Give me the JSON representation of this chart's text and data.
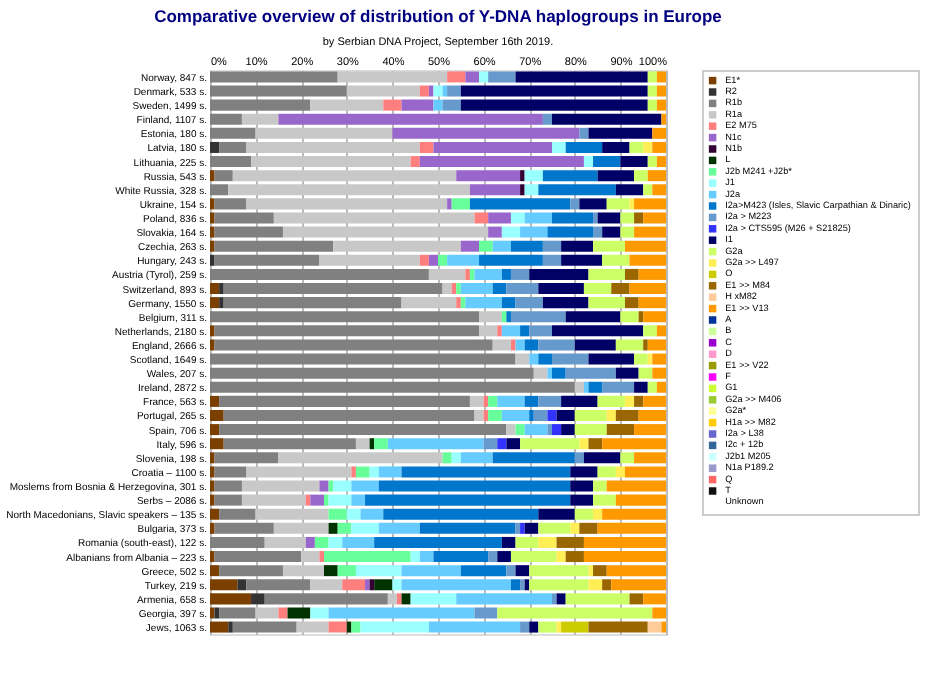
{
  "chart_data": {
    "type": "bar",
    "orientation": "horizontal",
    "stacked": true,
    "title": "Comparative overview of distribution of Y-DNA haplogroups in Europe",
    "subtitle": "by Serbian DNA Project, September 16th 2019.",
    "categories": [
      "Norway, 847 s.",
      "Denmark, 533 s.",
      "Sweden, 1499 s.",
      "Finland, 1107 s.",
      "Estonia, 180 s.",
      "Latvia, 180 s.",
      "Lithuania, 225 s.",
      "Russia, 543 s.",
      "White Russia, 328 s.",
      "Ukraine, 154 s.",
      "Poland, 836 s.",
      "Slovakia, 164 s.",
      "Czechia, 263 s.",
      "Hungary, 243 s.",
      "Austria (Tyrol), 259 s.",
      "Switzerland, 893 s.",
      "Germany, 1550 s.",
      "Belgium, 311 s.",
      "Netherlands, 2180 s.",
      "England, 2666 s.",
      "Scotland, 1649 s.",
      "Wales, 207 s.",
      "Ireland, 2872 s.",
      "France, 563 s.",
      "Portugal, 265 s.",
      "Spain, 706 s.",
      "Italy, 596 s.",
      "Slovenia, 198 s.",
      "Croatia – 1100 s.",
      "Moslems from Bosnia & Herzegovina, 301 s.",
      "Serbs – 2086 s.",
      "North Macedonians, Slavic speakers – 135 s.",
      "Bulgaria, 373 s.",
      "Romania (south-east), 122 s.",
      "Albanians from Albania – 223 s.",
      "Greece, 502 s.",
      "Turkey, 219 s.",
      "Armenia, 658 s.",
      "Georgia, 397 s.",
      "Jews, 1063 s."
    ],
    "xlim": [
      0,
      100
    ],
    "xticks": [
      {
        "value": 0,
        "label": "0%"
      },
      {
        "value": 10,
        "label": "10%"
      },
      {
        "value": 20,
        "label": "20%"
      },
      {
        "value": 30,
        "label": "30%"
      },
      {
        "value": 40,
        "label": "40%"
      },
      {
        "value": 50,
        "label": "50%"
      },
      {
        "value": 60,
        "label": "60%"
      },
      {
        "value": 70,
        "label": "70%"
      },
      {
        "value": 80,
        "label": "80%"
      },
      {
        "value": 90,
        "label": "90%"
      },
      {
        "value": 100,
        "label": "100%"
      }
    ],
    "grid": "x",
    "legend": "right",
    "series": [
      {
        "name": "E1*",
        "color": "#7b3f00",
        "values": [
          0,
          0,
          0,
          0,
          0,
          0,
          0,
          1,
          0,
          1,
          1,
          1,
          1,
          0,
          0,
          2,
          2,
          0,
          1,
          1,
          0,
          0,
          0,
          2,
          3,
          2,
          3,
          1,
          1,
          1,
          1,
          2,
          1,
          0,
          1,
          2,
          6,
          9,
          1,
          4
        ]
      },
      {
        "name": "R2",
        "color": "#333333",
        "values": [
          0,
          0,
          0,
          0,
          0,
          2,
          0,
          0,
          0,
          0,
          0,
          0,
          0,
          1,
          0,
          1,
          1,
          0,
          0,
          0,
          0,
          0,
          0,
          0,
          0,
          0,
          0,
          0,
          0,
          0,
          0,
          0,
          0,
          0,
          0,
          0,
          2,
          3,
          1,
          1
        ]
      },
      {
        "name": "R1b",
        "color": "#808080",
        "values": [
          28,
          30,
          22,
          7,
          10,
          6,
          9,
          4,
          4,
          7,
          13,
          15,
          26,
          23,
          48,
          48,
          39,
          59,
          58,
          61,
          67,
          71,
          80,
          55,
          55,
          63,
          29,
          14,
          7,
          6,
          6,
          8,
          13,
          12,
          19,
          14,
          14,
          27,
          8,
          14
        ]
      },
      {
        "name": "R1a",
        "color": "#c8c8c8",
        "values": [
          24,
          16,
          16,
          8,
          30,
          38,
          35,
          49,
          53,
          44,
          44,
          45,
          28,
          22,
          8,
          2,
          12,
          5,
          4,
          4,
          3,
          3,
          2,
          3,
          2,
          2,
          3,
          36,
          23,
          17,
          14,
          16,
          12,
          9,
          4,
          9,
          7,
          2,
          5,
          7
        ]
      },
      {
        "name": "E2 M75",
        "color": "#ff7f7f",
        "values": [
          4,
          2,
          4,
          0,
          0,
          3,
          2,
          0,
          0,
          0,
          3,
          0,
          0,
          2,
          1,
          1,
          1,
          0,
          1,
          1,
          0,
          0,
          0,
          1,
          1,
          0,
          0,
          0,
          1,
          0,
          1,
          0,
          0,
          0,
          1,
          0,
          5,
          1,
          2,
          4
        ]
      },
      {
        "name": "N1c",
        "color": "#9966cc",
        "values": [
          3,
          1,
          7,
          58,
          41,
          26,
          36,
          14,
          11,
          1,
          5,
          3,
          4,
          2,
          0,
          0,
          0,
          0,
          0,
          0,
          0,
          0,
          0,
          0,
          0,
          0,
          0,
          0,
          0,
          2,
          3,
          0,
          0,
          2,
          0,
          0,
          1,
          0,
          0,
          0
        ]
      },
      {
        "name": "N1b",
        "color": "#330033",
        "values": [
          0,
          0,
          0,
          0,
          0,
          0,
          0,
          1,
          1,
          0,
          0,
          0,
          0,
          0,
          0,
          0,
          0,
          0,
          0,
          0,
          0,
          0,
          0,
          0,
          0,
          0,
          0,
          0,
          0,
          0,
          0,
          0,
          0,
          0,
          0,
          0,
          1,
          0,
          0,
          0
        ]
      },
      {
        "name": "L",
        "color": "#003300",
        "values": [
          0,
          0,
          0,
          0,
          0,
          0,
          0,
          0,
          0,
          0,
          0,
          0,
          0,
          0,
          0,
          0,
          0,
          0,
          0,
          0,
          0,
          0,
          0,
          0,
          0,
          0,
          1,
          0,
          0,
          0,
          0,
          0,
          2,
          0,
          0,
          3,
          4,
          2,
          5,
          1
        ]
      },
      {
        "name": "J2b M241 +J2b*",
        "color": "#66ff99",
        "values": [
          0,
          0,
          0,
          0,
          0,
          0,
          0,
          0,
          0,
          4,
          0,
          0,
          3,
          2,
          1,
          1,
          1,
          1,
          0,
          0,
          0,
          0,
          0,
          2,
          3,
          2,
          3,
          2,
          3,
          1,
          1,
          4,
          3,
          3,
          19,
          4,
          0,
          0,
          0,
          2
        ]
      },
      {
        "name": "J1",
        "color": "#99ffff",
        "values": [
          2,
          2,
          0,
          0,
          0,
          3,
          2,
          4,
          3,
          0,
          3,
          4,
          0,
          0,
          0,
          0,
          0,
          0,
          0,
          0,
          0,
          0,
          0,
          0,
          0,
          0,
          0,
          2,
          2,
          4,
          5,
          3,
          6,
          3,
          2,
          10,
          2,
          10,
          4,
          15
        ]
      },
      {
        "name": "J2a",
        "color": "#66ccff",
        "values": [
          0,
          1,
          2,
          0,
          0,
          0,
          0,
          0,
          0,
          0,
          6,
          6,
          4,
          7,
          6,
          7,
          8,
          0,
          4,
          2,
          2,
          1,
          1,
          6,
          6,
          5,
          21,
          7,
          5,
          6,
          3,
          5,
          9,
          7,
          3,
          13,
          24,
          21,
          32,
          20
        ]
      },
      {
        "name": "I2a>M423 (Isles, Slavic Carpathian & Dinaric)",
        "color": "#0077cc",
        "values": [
          0,
          0,
          0,
          0,
          0,
          8,
          6,
          12,
          17,
          22,
          9,
          10,
          7,
          14,
          2,
          3,
          3,
          1,
          2,
          3,
          3,
          3,
          3,
          3,
          1,
          0,
          0,
          18,
          37,
          42,
          45,
          34,
          21,
          28,
          12,
          10,
          2,
          0,
          0,
          0
        ]
      },
      {
        "name": "I2a > M223",
        "color": "#6699cc",
        "values": [
          6,
          3,
          4,
          2,
          2,
          0,
          0,
          0,
          0,
          2,
          1,
          2,
          4,
          4,
          4,
          7,
          6,
          12,
          5,
          8,
          8,
          11,
          7,
          5,
          3,
          1,
          3,
          2,
          0,
          0,
          0,
          0,
          1,
          0,
          2,
          2,
          1,
          1,
          5,
          2
        ]
      },
      {
        "name": "I2a > CTS595 (M26 + S21825)",
        "color": "#3333ff",
        "values": [
          0,
          0,
          0,
          0,
          0,
          0,
          0,
          0,
          0,
          0,
          0,
          0,
          0,
          0,
          0,
          0,
          0,
          0,
          0,
          0,
          0,
          0,
          0,
          0,
          2,
          2,
          2,
          0,
          0,
          0,
          0,
          0,
          1,
          0,
          0,
          0,
          0,
          0,
          0,
          0
        ]
      },
      {
        "name": "I1",
        "color": "#000066",
        "values": [
          29,
          41,
          41,
          24,
          14,
          6,
          6,
          8,
          6,
          6,
          5,
          4,
          7,
          9,
          13,
          10,
          10,
          12,
          20,
          9,
          10,
          5,
          3,
          8,
          4,
          3,
          3,
          8,
          6,
          5,
          5,
          8,
          3,
          3,
          3,
          3,
          1,
          2,
          0,
          2
        ]
      },
      {
        "name": "G2a",
        "color": "#ccff66",
        "values": [
          2,
          2,
          2,
          0,
          0,
          3,
          2,
          3,
          2,
          5,
          3,
          3,
          7,
          6,
          8,
          6,
          8,
          4,
          3,
          6,
          3,
          3,
          2,
          6,
          7,
          7,
          13,
          3,
          4,
          3,
          5,
          4,
          7,
          5,
          10,
          13,
          13,
          14,
          34,
          4
        ]
      },
      {
        "name": "G2a >> L497",
        "color": "#ffee55",
        "values": [
          0,
          0,
          0,
          0,
          0,
          2,
          0,
          0,
          0,
          1,
          0,
          0,
          0,
          0,
          0,
          0,
          0,
          0,
          0,
          0,
          1,
          0,
          0,
          2,
          2,
          0,
          2,
          0,
          2,
          0,
          0,
          2,
          2,
          4,
          2,
          1,
          3,
          0,
          0,
          1
        ]
      },
      {
        "name": "O",
        "color": "#cccc00",
        "values": [
          0,
          0,
          0,
          0,
          0,
          0,
          0,
          0,
          0,
          0,
          0,
          0,
          0,
          0,
          0,
          0,
          0,
          0,
          0,
          0,
          0,
          0,
          0,
          0,
          0,
          0,
          0,
          0,
          0,
          0,
          0,
          0,
          0,
          0,
          0,
          0,
          0,
          0,
          0,
          6
        ]
      },
      {
        "name": "E1 >> M84",
        "color": "#996600",
        "values": [
          0,
          0,
          0,
          0,
          0,
          0,
          0,
          0,
          0,
          0,
          2,
          0,
          0,
          0,
          3,
          4,
          3,
          1,
          0,
          1,
          0,
          0,
          0,
          2,
          5,
          6,
          3,
          0,
          0,
          0,
          0,
          0,
          4,
          6,
          4,
          3,
          2,
          3,
          0,
          13
        ]
      },
      {
        "name": "H xM82",
        "color": "#ffcc99",
        "values": [
          0,
          0,
          0,
          0,
          0,
          0,
          0,
          0,
          0,
          0,
          0,
          0,
          0,
          0,
          0,
          0,
          0,
          0,
          0,
          0,
          0,
          0,
          0,
          0,
          0,
          0,
          0,
          0,
          0,
          0,
          0,
          0,
          0,
          0,
          0,
          0,
          0,
          0,
          0,
          3
        ]
      },
      {
        "name": "E1 >> V13",
        "color": "#ff9900",
        "values": [
          2,
          2,
          2,
          1,
          3,
          3,
          2,
          4,
          3,
          7,
          5,
          7,
          9,
          8,
          6,
          8,
          6,
          5,
          2,
          4,
          3,
          3,
          2,
          5,
          6,
          7,
          14,
          7,
          9,
          13,
          11,
          14,
          15,
          18,
          18,
          13,
          12,
          5,
          3,
          1
        ]
      },
      {
        "name": "A",
        "color": "#003399",
        "values": [
          0,
          0,
          0,
          0,
          0,
          0,
          0,
          0,
          0,
          0,
          0,
          0,
          0,
          0,
          0,
          0,
          0,
          0,
          0,
          0,
          0,
          0,
          0,
          0,
          0,
          0,
          0,
          0,
          0,
          0,
          0,
          0,
          0,
          0,
          0,
          0,
          0,
          0,
          0,
          0
        ]
      },
      {
        "name": "B",
        "color": "#ccff99",
        "values": [
          0,
          0,
          0,
          0,
          0,
          0,
          0,
          0,
          0,
          0,
          0,
          0,
          0,
          0,
          0,
          0,
          0,
          0,
          0,
          0,
          0,
          0,
          0,
          0,
          0,
          0,
          0,
          0,
          0,
          0,
          0,
          0,
          0,
          0,
          0,
          0,
          0,
          0,
          0,
          0
        ]
      },
      {
        "name": "C",
        "color": "#9900cc",
        "values": [
          0,
          0,
          0,
          0,
          0,
          0,
          0,
          0,
          0,
          0,
          0,
          0,
          0,
          0,
          0,
          0,
          0,
          0,
          0,
          0,
          0,
          0,
          0,
          0,
          0,
          0,
          0,
          0,
          0,
          0,
          0,
          0,
          0,
          0,
          0,
          0,
          0,
          0,
          0,
          0
        ]
      },
      {
        "name": "D",
        "color": "#ff99cc",
        "values": [
          0,
          0,
          0,
          0,
          0,
          0,
          0,
          0,
          0,
          0,
          0,
          0,
          0,
          0,
          0,
          0,
          0,
          0,
          0,
          0,
          0,
          0,
          0,
          0,
          0,
          0,
          0,
          0,
          0,
          0,
          0,
          0,
          0,
          0,
          0,
          0,
          0,
          0,
          0,
          0
        ]
      },
      {
        "name": "E1 >> V22",
        "color": "#999900",
        "values": [
          0,
          0,
          0,
          0,
          0,
          0,
          0,
          0,
          0,
          0,
          0,
          0,
          0,
          0,
          0,
          0,
          0,
          0,
          0,
          0,
          0,
          0,
          0,
          0,
          0,
          0,
          0,
          0,
          0,
          0,
          0,
          0,
          0,
          0,
          0,
          0,
          0,
          0,
          0,
          0
        ]
      },
      {
        "name": "F",
        "color": "#ff00ff",
        "values": [
          0,
          0,
          0,
          0,
          0,
          0,
          0,
          0,
          0,
          0,
          0,
          0,
          0,
          0,
          0,
          0,
          0,
          0,
          0,
          0,
          0,
          0,
          0,
          0,
          0,
          0,
          0,
          0,
          0,
          0,
          0,
          0,
          0,
          0,
          0,
          0,
          0,
          0,
          0,
          0
        ]
      },
      {
        "name": "G1",
        "color": "#ccff33",
        "values": [
          0,
          0,
          0,
          0,
          0,
          0,
          0,
          0,
          0,
          0,
          0,
          0,
          0,
          0,
          0,
          0,
          0,
          0,
          0,
          0,
          0,
          0,
          0,
          0,
          0,
          0,
          0,
          0,
          0,
          0,
          0,
          0,
          0,
          0,
          0,
          0,
          0,
          0,
          0,
          0
        ]
      },
      {
        "name": "G2a >> M406",
        "color": "#99cc33",
        "values": [
          0,
          0,
          0,
          0,
          0,
          0,
          0,
          0,
          0,
          0,
          0,
          0,
          0,
          0,
          0,
          0,
          0,
          0,
          0,
          0,
          0,
          0,
          0,
          0,
          0,
          0,
          0,
          0,
          0,
          0,
          0,
          0,
          0,
          0,
          0,
          0,
          0,
          0,
          0,
          0
        ]
      },
      {
        "name": "G2a*",
        "color": "#ffff99",
        "values": [
          0,
          0,
          0,
          0,
          0,
          0,
          0,
          0,
          0,
          0,
          0,
          0,
          0,
          0,
          0,
          0,
          0,
          0,
          0,
          0,
          0,
          0,
          0,
          0,
          0,
          0,
          0,
          0,
          0,
          0,
          0,
          0,
          0,
          0,
          0,
          0,
          0,
          0,
          0,
          0
        ]
      },
      {
        "name": "H1a >> M82",
        "color": "#ffcc00",
        "values": [
          0,
          0,
          0,
          0,
          0,
          0,
          0,
          0,
          0,
          0,
          0,
          0,
          0,
          0,
          0,
          0,
          0,
          0,
          0,
          0,
          0,
          0,
          0,
          0,
          0,
          0,
          0,
          0,
          0,
          0,
          0,
          0,
          0,
          0,
          0,
          0,
          0,
          0,
          0,
          0
        ]
      },
      {
        "name": "I2a > L38",
        "color": "#6666cc",
        "values": [
          0,
          0,
          0,
          0,
          0,
          0,
          0,
          0,
          0,
          0,
          0,
          0,
          0,
          0,
          0,
          0,
          0,
          0,
          0,
          0,
          0,
          0,
          0,
          0,
          0,
          0,
          0,
          0,
          0,
          0,
          0,
          0,
          0,
          0,
          0,
          0,
          0,
          0,
          0,
          0
        ]
      },
      {
        "name": "I2c + 12b",
        "color": "#336699",
        "values": [
          0,
          0,
          0,
          0,
          0,
          0,
          0,
          0,
          0,
          0,
          0,
          0,
          0,
          0,
          0,
          0,
          0,
          0,
          0,
          0,
          0,
          0,
          0,
          0,
          0,
          0,
          0,
          0,
          0,
          0,
          0,
          0,
          0,
          0,
          0,
          0,
          0,
          0,
          0,
          0
        ]
      },
      {
        "name": "J2b1 M205",
        "color": "#ccffff",
        "values": [
          0,
          0,
          0,
          0,
          0,
          0,
          0,
          0,
          0,
          0,
          0,
          0,
          0,
          0,
          0,
          0,
          0,
          0,
          0,
          0,
          0,
          0,
          0,
          0,
          0,
          0,
          0,
          0,
          0,
          0,
          0,
          0,
          0,
          0,
          0,
          0,
          0,
          0,
          0,
          0
        ]
      },
      {
        "name": "N1a P189.2",
        "color": "#9999cc",
        "values": [
          0,
          0,
          0,
          0,
          0,
          0,
          0,
          0,
          0,
          0,
          0,
          0,
          0,
          0,
          0,
          0,
          0,
          0,
          0,
          0,
          0,
          0,
          0,
          0,
          0,
          0,
          0,
          0,
          0,
          0,
          0,
          0,
          0,
          0,
          0,
          0,
          0,
          0,
          0,
          0
        ]
      },
      {
        "name": "Q",
        "color": "#ff6666",
        "values": [
          0,
          0,
          0,
          0,
          0,
          0,
          0,
          0,
          0,
          0,
          0,
          0,
          0,
          0,
          0,
          0,
          0,
          0,
          0,
          0,
          0,
          0,
          0,
          0,
          0,
          0,
          0,
          0,
          0,
          0,
          0,
          0,
          0,
          0,
          0,
          0,
          0,
          0,
          0,
          0
        ]
      },
      {
        "name": "T",
        "color": "#111111",
        "values": [
          0,
          0,
          0,
          0,
          0,
          0,
          0,
          0,
          0,
          0,
          0,
          0,
          0,
          0,
          0,
          0,
          0,
          0,
          0,
          0,
          0,
          0,
          0,
          0,
          0,
          0,
          0,
          0,
          0,
          0,
          0,
          0,
          0,
          0,
          0,
          0,
          0,
          0,
          0,
          0
        ]
      },
      {
        "name": "Unknown",
        "color": null,
        "values": [
          0,
          0,
          0,
          0,
          0,
          0,
          0,
          0,
          0,
          0,
          0,
          0,
          0,
          0,
          0,
          0,
          0,
          0,
          0,
          0,
          0,
          0,
          0,
          0,
          0,
          0,
          0,
          0,
          0,
          0,
          0,
          0,
          0,
          0,
          0,
          0,
          0,
          0,
          0,
          0
        ]
      }
    ]
  }
}
